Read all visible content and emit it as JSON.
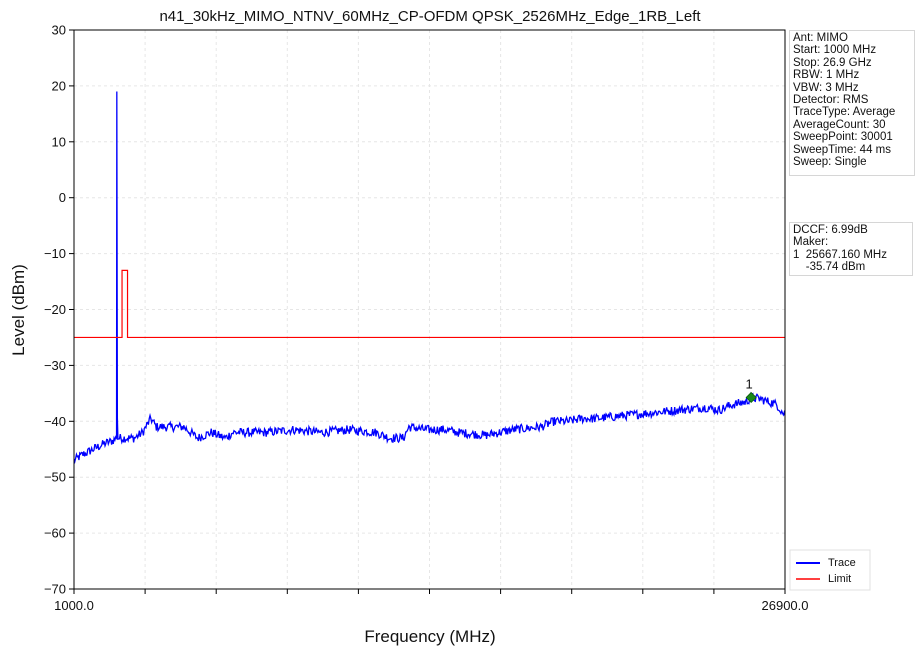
{
  "chart_data": {
    "type": "line",
    "title": "n41_30kHz_MIMO_NTNV_60MHz_CP-OFDM QPSK_2526MHz_Edge_1RB_Left",
    "xlabel": "Frequency (MHz)",
    "ylabel": "Level (dBm)",
    "xlim": [
      1000,
      26900
    ],
    "ylim": [
      -70,
      30
    ],
    "x_tick_labels": [
      "1000.0",
      "26900.0"
    ],
    "y_ticks": [
      30,
      20,
      10,
      0,
      -10,
      -20,
      -30,
      -40,
      -50,
      -60,
      -70
    ],
    "y_tick_labels": [
      "30",
      "20",
      "10",
      "0",
      "−10",
      "−20",
      "−30",
      "−40",
      "−50",
      "−60",
      "−70"
    ],
    "grid": true,
    "legend_position": "bottom-right",
    "series": [
      {
        "name": "Trace",
        "color": "#0000ff",
        "x": [
          1000,
          1300,
          1700,
          2100,
          2400,
          2550,
          2560,
          2580,
          2600,
          2800,
          3200,
          3500,
          3800,
          4000,
          4300,
          5000,
          5500,
          6000,
          6500,
          6800,
          7200,
          8000,
          9000,
          10000,
          11000,
          12000,
          12500,
          13000,
          13200,
          13800,
          14500,
          15000,
          16000,
          17000,
          18000,
          18500,
          19000,
          19500,
          20000,
          21000,
          22000,
          23000,
          24000,
          24500,
          25000,
          25500,
          25667,
          26000,
          26300,
          26600,
          26900
        ],
        "y": [
          -47,
          -46,
          -45,
          -44,
          -43.5,
          -43,
          19,
          -39,
          -43,
          -43,
          -43,
          -42,
          -39.5,
          -41,
          -41,
          -41,
          -43,
          -42,
          -43,
          -42,
          -42,
          -42,
          -41.5,
          -42,
          -41.5,
          -42,
          -43,
          -43,
          -41,
          -41.5,
          -41.5,
          -42,
          -42.5,
          -41.5,
          -41,
          -40,
          -40,
          -39.5,
          -39.5,
          -39,
          -38.5,
          -38,
          -37.5,
          -38,
          -37,
          -36.5,
          -35.74,
          -36,
          -36.5,
          -37,
          -39
        ],
        "noise_amplitude_db": 0.8
      },
      {
        "name": "Limit",
        "color": "#ff0000",
        "x": [
          1000,
          2750,
          2750,
          2950,
          2950,
          26900
        ],
        "y": [
          -25,
          -25,
          -13,
          -13,
          -25,
          -25
        ]
      }
    ],
    "markers": [
      {
        "label": "1",
        "x": 25667.16,
        "y": -35.74,
        "color": "#1a8a1a"
      }
    ]
  },
  "info_panel": {
    "lines": [
      "Ant: MIMO",
      "Start: 1000 MHz",
      "Stop: 26.9 GHz",
      "RBW: 1 MHz",
      "VBW: 3 MHz",
      "Detector: RMS",
      "TraceType: Average",
      "AverageCount: 30",
      "SweepPoint: 30001",
      "SweepTime: 44 ms",
      "Sweep: Single"
    ]
  },
  "marker_panel": {
    "lines": [
      "DCCF: 6.99dB",
      "Maker:",
      "1  25667.160 MHz",
      "    -35.74 dBm"
    ]
  }
}
